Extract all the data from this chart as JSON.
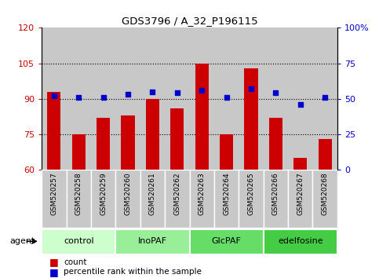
{
  "title": "GDS3796 / A_32_P196115",
  "samples": [
    "GSM520257",
    "GSM520258",
    "GSM520259",
    "GSM520260",
    "GSM520261",
    "GSM520262",
    "GSM520263",
    "GSM520264",
    "GSM520265",
    "GSM520266",
    "GSM520267",
    "GSM520268"
  ],
  "bar_values": [
    93,
    75,
    82,
    83,
    90,
    86,
    105,
    75,
    103,
    82,
    65,
    73
  ],
  "dot_values": [
    52,
    51,
    51,
    53,
    55,
    54,
    56,
    51,
    57,
    54,
    46,
    51
  ],
  "groups": [
    {
      "label": "control",
      "start": 0,
      "end": 3,
      "color": "#ccffcc"
    },
    {
      "label": "InoPAF",
      "start": 3,
      "end": 6,
      "color": "#99ee99"
    },
    {
      "label": "GlcPAF",
      "start": 6,
      "end": 9,
      "color": "#66dd66"
    },
    {
      "label": "edelfosine",
      "start": 9,
      "end": 12,
      "color": "#44cc44"
    }
  ],
  "bar_color": "#cc0000",
  "dot_color": "#0000cc",
  "ylim_left": [
    60,
    120
  ],
  "ylim_right": [
    0,
    100
  ],
  "yticks_left": [
    60,
    75,
    90,
    105,
    120
  ],
  "yticks_right": [
    0,
    25,
    50,
    75,
    100
  ],
  "ytick_labels_right": [
    "0",
    "25",
    "50",
    "75",
    "100%"
  ],
  "hlines": [
    75,
    90,
    105
  ],
  "bar_width": 0.55,
  "cell_bg": "#c8c8c8",
  "legend_items": [
    {
      "label": "count",
      "color": "#cc0000"
    },
    {
      "label": "percentile rank within the sample",
      "color": "#0000cc"
    }
  ],
  "agent_label": "agent"
}
